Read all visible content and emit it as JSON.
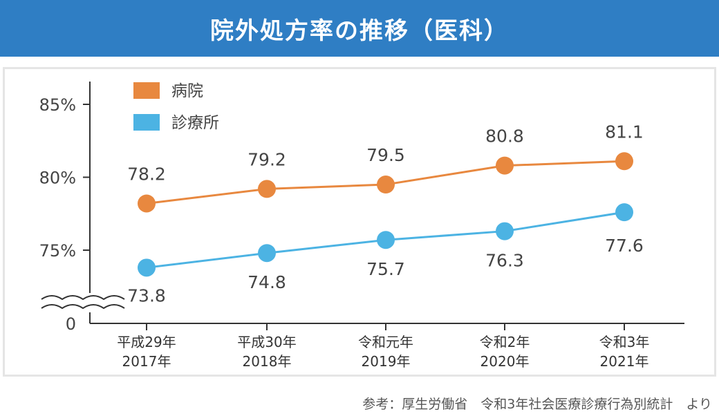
{
  "title": "院外処方率の推移（医科）",
  "source": "参考：厚生労働省　令和3年社会医療診療行為別統計　より",
  "colors": {
    "title_bg": "#2f7ec4",
    "hospital": "#e8883f",
    "clinic": "#4cb3e3",
    "axis": "#333333"
  },
  "chart_data": {
    "type": "line",
    "title": "院外処方率の推移（医科）",
    "x_era": [
      "平成29年",
      "平成30年",
      "令和元年",
      "令和2年",
      "令和3年"
    ],
    "x_year": [
      "2017年",
      "2018年",
      "2019年",
      "2020年",
      "2021年"
    ],
    "y_ticks": [
      "0",
      "75%",
      "80%",
      "85%"
    ],
    "y_range": [
      72.5,
      85
    ],
    "axis_break": true,
    "legend_position": "top-left",
    "grid": false,
    "series": [
      {
        "name": "病院",
        "color": "#e8883f",
        "values": [
          78.2,
          79.2,
          79.5,
          80.8,
          81.1
        ],
        "labels": [
          "78.2",
          "79.2",
          "79.5",
          "80.8",
          "81.1"
        ]
      },
      {
        "name": "診療所",
        "color": "#4cb3e3",
        "values": [
          73.8,
          74.8,
          75.7,
          76.3,
          77.6
        ],
        "labels": [
          "73.8",
          "74.8",
          "75.7",
          "76.3",
          "77.6"
        ]
      }
    ]
  }
}
